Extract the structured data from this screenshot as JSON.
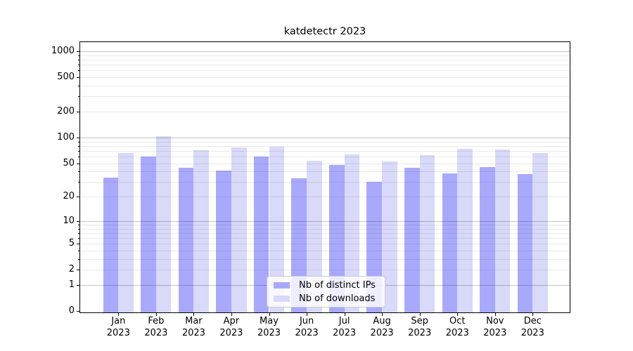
{
  "chart_data": {
    "type": "bar",
    "title": "katdetectr 2023",
    "categories": [
      "Jan 2023",
      "Feb 2023",
      "Mar 2023",
      "Apr 2023",
      "May 2023",
      "Jun 2023",
      "Jul 2023",
      "Aug 2023",
      "Sep 2023",
      "Oct 2023",
      "Nov 2023",
      "Dec 2023"
    ],
    "series": [
      {
        "name": "Nb of distinct IPs",
        "color": "#a9a9fb",
        "values": [
          34,
          60,
          44,
          41,
          60,
          33,
          48,
          30,
          44,
          38,
          45,
          37
        ]
      },
      {
        "name": "Nb of downloads",
        "color": "#d9d9f9",
        "values": [
          66,
          103,
          71,
          77,
          78,
          54,
          64,
          53,
          62,
          74,
          73,
          66
        ]
      }
    ],
    "xlabel": "",
    "ylabel": "",
    "yscale": "log1p",
    "yticks": [
      0,
      1,
      2,
      5,
      10,
      20,
      50,
      100,
      200,
      500,
      1000
    ],
    "ytick_major": [
      1,
      10,
      100,
      1000
    ],
    "ylim": [
      0,
      1280
    ],
    "grid": "horizontal, log minor gridlines",
    "legend_position": "lower center inside plot"
  },
  "colors": {
    "background": "#ffffff",
    "grid_major": "#c4c4c4",
    "grid_minor": "#eaeaea",
    "spine": "#000000",
    "text": "#000000",
    "legend_border": "#cccccc",
    "legend_background": "#ffffff"
  }
}
